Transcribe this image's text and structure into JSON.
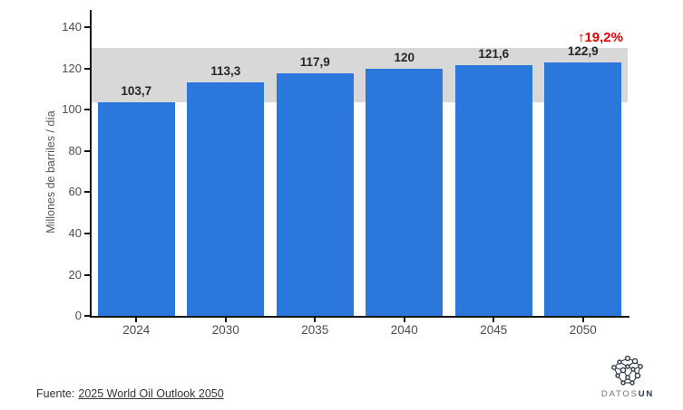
{
  "chart_data": {
    "type": "bar",
    "title": "",
    "categories": [
      "2024",
      "2030",
      "2035",
      "2040",
      "2045",
      "2050"
    ],
    "values": [
      103.7,
      113.3,
      117.9,
      120,
      121.6,
      122.9
    ],
    "value_labels": [
      "103,7",
      "113,3",
      "117,9",
      "120",
      "121,6",
      "122,9"
    ],
    "xlabel": "",
    "ylabel": "Millones de barriles / día",
    "ylim": [
      0,
      148
    ],
    "yticks": [
      0,
      20,
      40,
      60,
      80,
      100,
      120,
      140
    ],
    "grid": false,
    "legend_position": "none",
    "bar_color": "#2b77dc",
    "band": {
      "from": 103.7,
      "to": 130,
      "color": "#d8d8d8"
    },
    "annotation": {
      "text": "↑19,2%",
      "color": "#e10000"
    }
  },
  "footer": {
    "source_prefix": "Fuente:",
    "source_link_text": "2025 World Oil Outlook 2050"
  },
  "logo": {
    "name_light": "DATOS",
    "name_bold": "UN",
    "icon": "network-icon",
    "color": "#2f3a48",
    "color_light": "#6d757f"
  }
}
